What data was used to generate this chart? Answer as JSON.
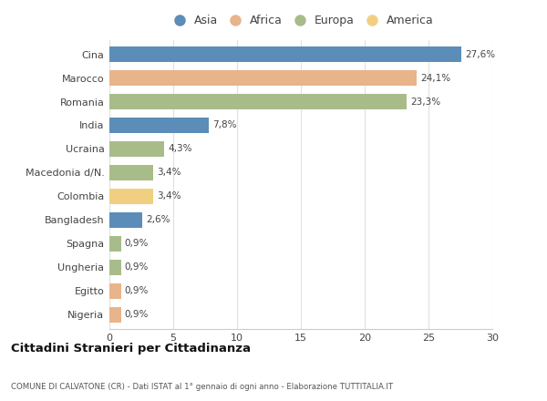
{
  "categories": [
    "Cina",
    "Marocco",
    "Romania",
    "India",
    "Ucraina",
    "Macedonia d/N.",
    "Colombia",
    "Bangladesh",
    "Spagna",
    "Ungheria",
    "Egitto",
    "Nigeria"
  ],
  "values": [
    27.6,
    24.1,
    23.3,
    7.8,
    4.3,
    3.4,
    3.4,
    2.6,
    0.9,
    0.9,
    0.9,
    0.9
  ],
  "labels": [
    "27,6%",
    "24,1%",
    "23,3%",
    "7,8%",
    "4,3%",
    "3,4%",
    "3,4%",
    "2,6%",
    "0,9%",
    "0,9%",
    "0,9%",
    "0,9%"
  ],
  "colors": [
    "#5b8db8",
    "#e8b48a",
    "#a8bc8a",
    "#5b8db8",
    "#a8bc8a",
    "#a8bc8a",
    "#f0d080",
    "#5b8db8",
    "#a8bc8a",
    "#a8bc8a",
    "#e8b48a",
    "#e8b48a"
  ],
  "legend": [
    {
      "label": "Asia",
      "color": "#5b8db8"
    },
    {
      "label": "Africa",
      "color": "#e8b48a"
    },
    {
      "label": "Europa",
      "color": "#a8bc8a"
    },
    {
      "label": "America",
      "color": "#f0d080"
    }
  ],
  "title1": "Cittadini Stranieri per Cittadinanza",
  "title2": "COMUNE DI CALVATONE (CR) - Dati ISTAT al 1° gennaio di ogni anno - Elaborazione TUTTITALIA.IT",
  "xlim": [
    0,
    30
  ],
  "xticks": [
    0,
    5,
    10,
    15,
    20,
    25,
    30
  ],
  "background_color": "#ffffff",
  "bar_height": 0.65
}
